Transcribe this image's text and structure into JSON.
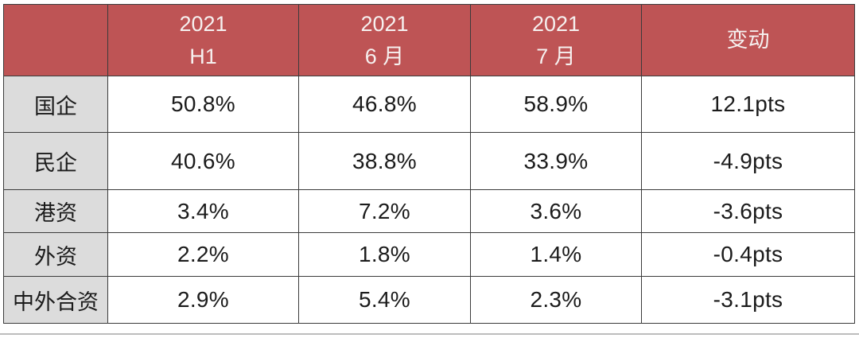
{
  "table": {
    "header": {
      "corner": "",
      "cols": [
        {
          "line1": "2021",
          "line2": "H1"
        },
        {
          "line1": "2021",
          "line2": "6 月"
        },
        {
          "line1": "2021",
          "line2": "7 月"
        }
      ],
      "change_label": "变动"
    },
    "rows": [
      {
        "label": "国企",
        "values": [
          "50.8%",
          "46.8%",
          "58.9%",
          "12.1pts"
        ]
      },
      {
        "label": "民企",
        "values": [
          "40.6%",
          "38.8%",
          "33.9%",
          "-4.9pts"
        ]
      },
      {
        "label": "港资",
        "values": [
          "3.4%",
          "7.2%",
          "3.6%",
          "-3.6pts"
        ]
      },
      {
        "label": "外资",
        "values": [
          "2.2%",
          "1.8%",
          "1.4%",
          "-0.4pts"
        ]
      },
      {
        "label": "中外合资",
        "values": [
          "2.9%",
          "5.4%",
          "2.3%",
          "-3.1pts"
        ]
      }
    ]
  },
  "chart_data": {
    "type": "table",
    "title": "",
    "columns": [
      "",
      "2021 H1",
      "2021 6 月",
      "2021 7 月",
      "变动"
    ],
    "rows": [
      [
        "国企",
        "50.8%",
        "46.8%",
        "58.9%",
        "12.1pts"
      ],
      [
        "民企",
        "40.6%",
        "38.8%",
        "33.9%",
        "-4.9pts"
      ],
      [
        "港资",
        "3.4%",
        "7.2%",
        "3.6%",
        "-3.6pts"
      ],
      [
        "外资",
        "2.2%",
        "1.8%",
        "1.4%",
        "-0.4pts"
      ],
      [
        "中外合资",
        "2.9%",
        "5.4%",
        "2.3%",
        "-3.1pts"
      ]
    ],
    "numeric": {
      "categories": [
        "国企",
        "民企",
        "港资",
        "外资",
        "中外合资"
      ],
      "series": [
        {
          "name": "2021 H1",
          "unit": "%",
          "values": [
            50.8,
            40.6,
            3.4,
            2.2,
            2.9
          ]
        },
        {
          "name": "2021 6 月",
          "unit": "%",
          "values": [
            46.8,
            38.8,
            7.2,
            1.8,
            5.4
          ]
        },
        {
          "name": "2021 7 月",
          "unit": "%",
          "values": [
            58.9,
            33.9,
            3.6,
            1.4,
            2.3
          ]
        },
        {
          "name": "变动",
          "unit": "pts",
          "values": [
            12.1,
            -4.9,
            -3.6,
            -0.4,
            -3.1
          ]
        }
      ]
    }
  },
  "colors": {
    "header_bg": "#be5455",
    "header_text": "#f6f1f0",
    "label_bg": "#dcdcdc",
    "body_text": "#1b1b1b",
    "border": "#3b3b3b",
    "page_edge": "#bdbdbd"
  }
}
